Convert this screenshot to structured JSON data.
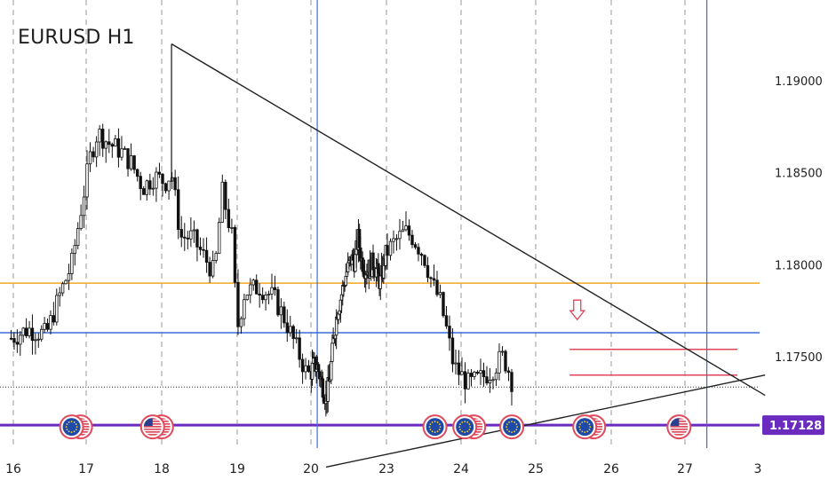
{
  "chart_data": {
    "type": "candlestick",
    "title": "EURUSD H1",
    "x_ticks": [
      {
        "label": "16",
        "day": 16
      },
      {
        "label": "17",
        "day": 17
      },
      {
        "label": "18",
        "day": 18
      },
      {
        "label": "19",
        "day": 19
      },
      {
        "label": "20",
        "day": 20
      },
      {
        "label": "23",
        "day": 23
      },
      {
        "label": "24",
        "day": 24
      },
      {
        "label": "25",
        "day": 25
      },
      {
        "label": "26",
        "day": 26
      },
      {
        "label": "27",
        "day": 27
      },
      {
        "label": "3",
        "day": 28
      }
    ],
    "y_ticks": [
      {
        "label": "1.19000",
        "value": 1.19
      },
      {
        "label": "1.18500",
        "value": 1.185
      },
      {
        "label": "1.18000",
        "value": 1.18
      },
      {
        "label": "1.17500",
        "value": 1.175
      }
    ],
    "ylim": [
      1.1688,
      1.1925
    ],
    "current_price": {
      "label": "1.17128",
      "value": 1.17128,
      "color": "#6b2bbf"
    },
    "close_price": 1.17335,
    "horizontal_levels": [
      {
        "value": 1.179,
        "color": "#f5a623"
      },
      {
        "value": 1.1763,
        "color": "#3a6fd8"
      },
      {
        "value": 1.1754,
        "color": "#e0455a",
        "from_day": 25.45
      },
      {
        "value": 1.174,
        "color": "#e0455a",
        "from_day": 25.45
      }
    ],
    "vertical_lines": [
      20.25,
      27.3
    ],
    "trendlines": [
      {
        "from": [
          18.13,
          1.192
        ],
        "to": [
          28.1,
          1.1729
        ],
        "color": "#222222"
      },
      {
        "from": [
          20.6,
          1.169
        ],
        "to": [
          28.1,
          1.174
        ],
        "color": "#222222"
      }
    ],
    "down_arrow": {
      "day": 25.55,
      "value": 1.1775,
      "color": "#e0455a"
    },
    "event_markers": [
      {
        "day": 16.8,
        "type": "eu-us"
      },
      {
        "day": 17.88,
        "type": "us-us"
      },
      {
        "day": 23.65,
        "type": "eu"
      },
      {
        "day": 24.05,
        "type": "eu-us"
      },
      {
        "day": 24.68,
        "type": "eu"
      },
      {
        "day": 25.65,
        "type": "eu-us"
      },
      {
        "day": 26.92,
        "type": "us"
      }
    ],
    "price_path": [
      [
        15.97,
        1.176
      ],
      [
        16.2,
        1.1765
      ],
      [
        16.45,
        1.1762
      ],
      [
        16.65,
        1.1785
      ],
      [
        16.8,
        1.18
      ],
      [
        16.95,
        1.1835
      ],
      [
        17.05,
        1.1858
      ],
      [
        17.15,
        1.1872
      ],
      [
        17.3,
        1.1866
      ],
      [
        17.45,
        1.1862
      ],
      [
        17.6,
        1.1855
      ],
      [
        17.75,
        1.1842
      ],
      [
        17.9,
        1.1848
      ],
      [
        18.05,
        1.1845
      ],
      [
        18.13,
        1.185
      ],
      [
        18.25,
        1.1815
      ],
      [
        18.4,
        1.1815
      ],
      [
        18.55,
        1.1805
      ],
      [
        18.7,
        1.1795
      ],
      [
        18.8,
        1.184
      ],
      [
        18.93,
        1.1815
      ],
      [
        19.0,
        1.1765
      ],
      [
        19.1,
        1.1785
      ],
      [
        19.3,
        1.1788
      ],
      [
        19.5,
        1.1782
      ],
      [
        19.65,
        1.177
      ],
      [
        19.8,
        1.1755
      ],
      [
        19.95,
        1.174
      ],
      [
        20.1,
        1.1745
      ],
      [
        20.25,
        1.1745
      ],
      [
        20.45,
        1.1735
      ],
      [
        20.6,
        1.1727
      ],
      [
        20.75,
        1.1738
      ],
      [
        20.9,
        1.176
      ],
      [
        21.05,
        1.1775
      ],
      [
        21.2,
        1.1783
      ],
      [
        21.4,
        1.1795
      ],
      [
        21.6,
        1.1803
      ],
      [
        21.75,
        1.1802
      ],
      [
        21.88,
        1.1815
      ],
      [
        22.0,
        1.1803
      ],
      [
        22.15,
        1.1798
      ],
      [
        22.3,
        1.1797
      ],
      [
        22.45,
        1.1801
      ],
      [
        22.6,
        1.1797
      ],
      [
        22.75,
        1.179
      ],
      [
        22.95,
        1.1804
      ],
      [
        23.1,
        1.1812
      ],
      [
        23.25,
        1.1818
      ],
      [
        23.35,
        1.1815
      ],
      [
        23.5,
        1.1805
      ],
      [
        23.62,
        1.1789
      ],
      [
        23.72,
        1.178
      ],
      [
        23.82,
        1.1762
      ],
      [
        23.9,
        1.1745
      ],
      [
        24.0,
        1.174
      ],
      [
        24.1,
        1.1735
      ],
      [
        24.25,
        1.1738
      ],
      [
        24.4,
        1.1742
      ],
      [
        24.55,
        1.175
      ],
      [
        24.62,
        1.1745
      ],
      [
        24.7,
        1.1734
      ]
    ]
  }
}
